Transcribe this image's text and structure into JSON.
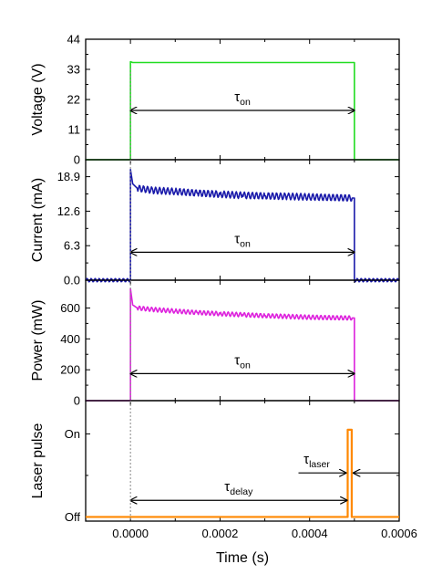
{
  "chart_data": [
    {
      "type": "line",
      "ylabel": "Voltage (V)",
      "ylim": [
        0,
        44
      ],
      "yticks": [
        0,
        11,
        22,
        33,
        44
      ],
      "ytick_labels": [
        "0",
        "11",
        "22",
        "33",
        "44"
      ],
      "series": [
        {
          "color": "#22dd22",
          "x": [
            -0.0001,
            0.0,
            0.0,
            5e-06,
            0.00049,
            0.0005,
            0.0005,
            0.0006
          ],
          "y": [
            0,
            0,
            35.8,
            35.5,
            35.5,
            35.5,
            0,
            0
          ]
        }
      ],
      "annotation": {
        "symbol": "τ",
        "subscript": "on",
        "from_x": 0.0,
        "to_x": 0.0005,
        "y": 18
      }
    },
    {
      "type": "line",
      "ylabel": "Current (mA)",
      "ylim": [
        0,
        22
      ],
      "yticks": [
        0.0,
        6.3,
        12.6,
        18.9
      ],
      "ytick_labels": [
        "0.0",
        "6.3",
        "12.6",
        "18.9"
      ],
      "series": [
        {
          "color": "#1a1aaa",
          "x": [
            -0.0001,
            0.0,
            0.0,
            5e-06,
            1.5e-05,
            5e-05,
            0.0001,
            0.00015,
            0.0002,
            0.00025,
            0.0003,
            0.00035,
            0.0004,
            0.00045,
            0.000495,
            0.0005,
            0.0005,
            0.0006
          ],
          "y": [
            0,
            0,
            20.2,
            17.6,
            16.8,
            16.4,
            16.2,
            15.9,
            15.7,
            15.5,
            15.4,
            15.3,
            15.2,
            15.1,
            15.0,
            15.0,
            0,
            0
          ],
          "ripple": 0.6,
          "baseline_ripple": 0.3
        }
      ],
      "annotation": {
        "symbol": "τ",
        "subscript": "on",
        "from_x": 0.0,
        "to_x": 0.0005,
        "y": 5.1
      }
    },
    {
      "type": "line",
      "ylabel": "Power (mW)",
      "xlabel": "",
      "ylim": [
        0,
        780
      ],
      "yticks": [
        0,
        200,
        400,
        600
      ],
      "ytick_labels": [
        "0",
        "200",
        "400",
        "600"
      ],
      "series": [
        {
          "color": "#dd22dd",
          "x": [
            -0.0001,
            0.0,
            0.0,
            5e-06,
            1.5e-05,
            5e-05,
            0.0001,
            0.00015,
            0.0002,
            0.00025,
            0.0003,
            0.00035,
            0.0004,
            0.00045,
            0.000495,
            0.0005,
            0.0005,
            0.0006
          ],
          "y": [
            0,
            0,
            725,
            620,
            600,
            590,
            580,
            570,
            563,
            556,
            550,
            545,
            540,
            537,
            535,
            535,
            0,
            0
          ],
          "ripple": 14,
          "baseline_ripple": 0
        }
      ],
      "annotation": {
        "symbol": "τ",
        "subscript": "on",
        "from_x": 0.0,
        "to_x": 0.0005,
        "y": 175
      }
    },
    {
      "type": "line",
      "ylabel": "Laser pulse",
      "xlabel": "Time (s)",
      "ylim": [
        -0.05,
        1.4
      ],
      "yticks": [
        0,
        1
      ],
      "ytick_labels": [
        "Off",
        "On"
      ],
      "xlim": [
        -0.0001,
        0.0006
      ],
      "xticks": [
        0.0,
        0.0002,
        0.0004,
        0.0006
      ],
      "xtick_labels": [
        "0.0000",
        "0.0002",
        "0.0004",
        "0.0006"
      ],
      "series": [
        {
          "color": "#ff8800",
          "x": [
            -0.0001,
            0.000482,
            0.000485,
            0.000485,
            0.000494,
            0.000494,
            0.0006
          ],
          "y": [
            0,
            0,
            0,
            1.05,
            1.05,
            0,
            0
          ]
        }
      ],
      "annotations": [
        {
          "symbol": "τ",
          "subscript": "delay",
          "from_x": 0.0,
          "to_x": 0.000483,
          "y": 0.2
        },
        {
          "symbol": "τ",
          "subscript": "laser",
          "inward_arrows_at": [
            0.000483,
            0.000496
          ],
          "y": 0.53
        }
      ]
    }
  ],
  "shared": {
    "dotted_line_x": 0.0,
    "axis_color": "#000000"
  }
}
